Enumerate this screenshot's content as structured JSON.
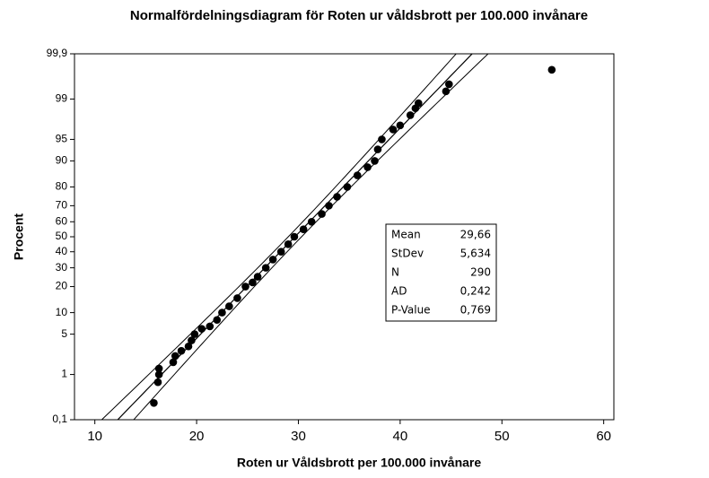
{
  "chart_data": {
    "type": "probability",
    "title": "Normalfördelningsdiagram för Roten ur våldsbrott per 100.000 invånare",
    "xlabel": "Roten ur Våldsbrott per 100.000 invånare",
    "ylabel": "Procent",
    "xlim": [
      8,
      61
    ],
    "xticks": [
      10,
      20,
      30,
      40,
      50,
      60
    ],
    "ylim": [
      0.1,
      99.9
    ],
    "yticks": [
      {
        "value": 0.1,
        "label": "0,1"
      },
      1,
      5,
      10,
      20,
      30,
      40,
      50,
      60,
      70,
      80,
      90,
      95,
      99,
      {
        "value": 99.9,
        "label": "99,9"
      }
    ],
    "series": [
      {
        "color": "#000000",
        "x": [
          15.8,
          16.2,
          16.3,
          16.3,
          17.7,
          17.9,
          18.5,
          19.2,
          19.5,
          19.8,
          20.5,
          21.3,
          22,
          22.5,
          23.2,
          24,
          24.8,
          25.5,
          26,
          26.8,
          27.5,
          28.3,
          29,
          29.6,
          30.5,
          31.3,
          32.3,
          33,
          33.8,
          34.8,
          35.8,
          36.8,
          37.5,
          37.8,
          38.2,
          39.3,
          40,
          41,
          41.5,
          41.8,
          44.5,
          44.8,
          54.9
        ],
        "values": [
          0.25,
          0.7,
          1,
          1.3,
          1.7,
          2.2,
          2.7,
          3.2,
          4,
          5,
          6,
          6.5,
          8,
          10,
          12,
          15,
          20,
          22,
          25,
          30,
          35,
          40,
          45,
          50,
          55,
          60,
          65,
          70,
          75,
          80,
          85,
          88,
          90,
          93,
          95,
          96.5,
          97,
          98,
          98.5,
          98.8,
          99.3,
          99.5,
          99.76
        ]
      }
    ],
    "stats": [
      {
        "name": "Mean",
        "value": 29.66,
        "label": "29,66"
      },
      {
        "name": "StDev",
        "value": 5.634,
        "label": "5,634"
      },
      {
        "name": "N",
        "value": 290,
        "label": "290"
      },
      {
        "name": "AD",
        "value": 0.242,
        "label": "0,242"
      },
      {
        "name": "P-Value",
        "value": 0.769,
        "label": "0,769"
      }
    ]
  }
}
